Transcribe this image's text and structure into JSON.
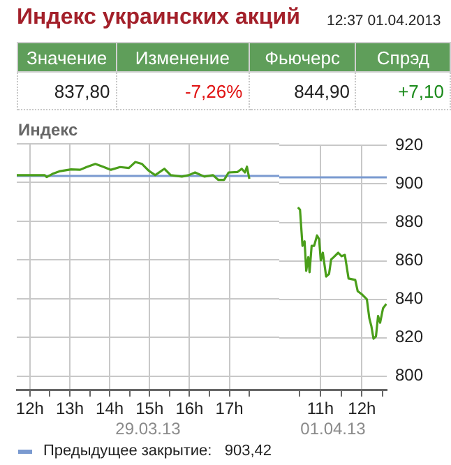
{
  "chart_data": [
    {
      "type": "line",
      "title": "Индекс украинских акций",
      "ylabel": "Индекс",
      "xlabel": "29.03.13",
      "annotations": [
        "Значение",
        "Изменение",
        "Фьючерс",
        "Спрэд",
        "837,80",
        "-7,26%",
        "844,90",
        "+7,10"
      ],
      "series": [
        {
          "color": "#4a9e1a",
          "x": [
            11.67,
            12.37,
            12.42,
            12.59,
            12.76,
            13.03,
            13.26,
            13.42,
            13.64,
            13.83,
            14.03,
            14.26,
            14.48,
            14.64,
            14.81,
            14.98,
            15.14,
            15.37,
            15.53,
            15.81,
            15.98,
            16.14,
            16.37,
            16.59,
            16.72,
            16.87,
            16.98,
            17.2,
            17.31,
            17.39,
            17.44,
            17.5
          ],
          "values": [
            903.8,
            903.8,
            902.8,
            904.7,
            905.9,
            906.8,
            906.6,
            908.0,
            909.6,
            908.2,
            906.6,
            908.0,
            907.5,
            910.6,
            909.6,
            906.1,
            903.8,
            907.1,
            903.8,
            903.1,
            903.8,
            905.2,
            903.1,
            903.8,
            901.4,
            901.4,
            905.2,
            905.4,
            907.1,
            905.2,
            908.2,
            901.9
          ]
        }
      ],
      "xlim": [
        11.67,
        18.25
      ],
      "xticks": [
        {
          "value": 12,
          "label": "12h"
        },
        {
          "value": 12.5,
          "label": null
        },
        {
          "value": 13,
          "label": "13h"
        },
        {
          "value": 13.5,
          "label": null
        },
        {
          "value": 14,
          "label": "14h"
        },
        {
          "value": 14.5,
          "label": null
        },
        {
          "value": 15,
          "label": "15h"
        },
        {
          "value": 15.5,
          "label": null
        },
        {
          "value": 16,
          "label": "16h"
        },
        {
          "value": 16.5,
          "label": null
        },
        {
          "value": 17,
          "label": "17h"
        },
        {
          "value": 17.5,
          "label": null
        }
      ],
      "ylim": [
        793,
        920
      ],
      "yticks": [
        800,
        820,
        840,
        860,
        880,
        900,
        920
      ],
      "tick_labels": "x",
      "ref_lines": [
        {
          "axis": "y",
          "value": 903.42,
          "label": "Предыдущее закрытие:   903,42",
          "color": "#7a9ad0"
        }
      ],
      "grid": true,
      "marker": "none",
      "line_style": "solid"
    },
    {
      "type": "line",
      "subtitle": "12:37 01.04.2013",
      "xlabel": "01.04.13",
      "series": [
        {
          "color": "#4a9e1a",
          "x": [
            10.46,
            10.51,
            10.57,
            10.62,
            10.66,
            10.71,
            10.74,
            10.79,
            10.85,
            10.92,
            10.97,
            11.01,
            11.06,
            11.14,
            11.21,
            11.26,
            11.32,
            11.43,
            11.51,
            11.59,
            11.68,
            11.84,
            11.9,
            12.01,
            12.12,
            12.18,
            12.23,
            12.28,
            12.34,
            12.39,
            12.44,
            12.51,
            12.59
          ],
          "values": [
            887.8,
            886.6,
            867.8,
            870.1,
            854.8,
            861.9,
            854.1,
            867.8,
            867.8,
            873.2,
            871.3,
            860.2,
            864.2,
            851.8,
            853.2,
            860.7,
            861.9,
            864.2,
            862.4,
            863.1,
            850.8,
            850.1,
            844.2,
            842.4,
            840.0,
            830.1,
            825.9,
            819.5,
            820.7,
            831.3,
            827.8,
            835.3,
            837.6
          ]
        }
      ],
      "xlim": [
        10.01,
        12.6
      ],
      "xticks": [
        {
          "value": 10.5,
          "label": null
        },
        {
          "value": 11,
          "label": "11h"
        },
        {
          "value": 11.5,
          "label": null
        },
        {
          "value": 12,
          "label": "12h"
        },
        {
          "value": 12.5,
          "label": null
        }
      ],
      "ylim": [
        793,
        920
      ],
      "yticks": [
        800,
        820,
        840,
        860,
        880,
        900,
        920
      ],
      "ref_lines": [
        {
          "axis": "y",
          "value": 903.42,
          "color": "#7a9ad0"
        }
      ],
      "grid": true,
      "marker": "none",
      "line_style": "solid"
    }
  ]
}
